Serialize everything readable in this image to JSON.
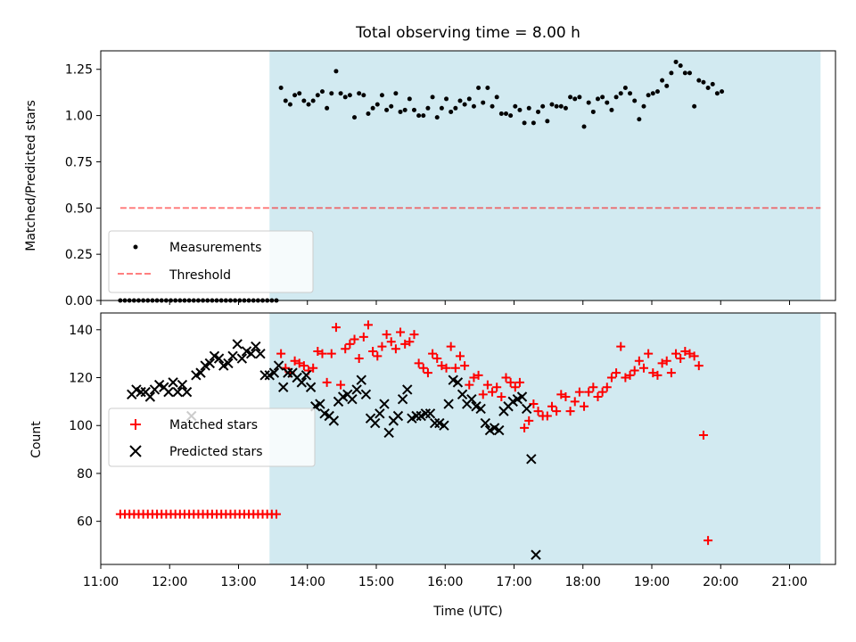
{
  "title": "Total observing time = 8.00 h",
  "xlabel": "Time (UTC)",
  "x_ticks": [
    "11:00",
    "12:00",
    "13:00",
    "14:00",
    "15:00",
    "16:00",
    "17:00",
    "18:00",
    "19:00",
    "20:00",
    "21:00"
  ],
  "colors": {
    "shade": "#add8e6",
    "threshold": "#ff0000",
    "matched": "#ff0000",
    "predicted": "#000000"
  },
  "chart_data": [
    {
      "type": "scatter",
      "ylabel": "Matched/Predicted stars",
      "xlim": [
        "11:00",
        "21:40"
      ],
      "ylim": [
        0,
        1.35
      ],
      "y_ticks": [
        "0.00",
        "0.25",
        "0.50",
        "0.75",
        "1.00",
        "1.25"
      ],
      "grid": false,
      "legend_position": "lower-left",
      "shaded_span": [
        "13:27",
        "21:27"
      ],
      "series": [
        {
          "name": "Measurements",
          "start": "11:17",
          "step_minutes": 4,
          "values": [
            0,
            0,
            0,
            0,
            0,
            0,
            0,
            0,
            0,
            0,
            0,
            0,
            0,
            0,
            0,
            0,
            0,
            0,
            0,
            0,
            0,
            0,
            0,
            0,
            0,
            0,
            0,
            0,
            0,
            0,
            0,
            0,
            0,
            0,
            0,
            1.15,
            1.08,
            1.06,
            1.11,
            1.12,
            1.08,
            1.06,
            1.08,
            1.11,
            1.13,
            1.04,
            1.12,
            1.24,
            1.12,
            1.1,
            1.11,
            0.99,
            1.12,
            1.11,
            1.01,
            1.04,
            1.06,
            1.11,
            1.03,
            1.05,
            1.12,
            1.02,
            1.03,
            1.09,
            1.03,
            1.0,
            1.0,
            1.04,
            1.1,
            0.99,
            1.04,
            1.09,
            1.02,
            1.04,
            1.08,
            1.06,
            1.09,
            1.05,
            1.15,
            1.07,
            1.15,
            1.05,
            1.1,
            1.01,
            1.01,
            1.0,
            1.05,
            1.03,
            0.96,
            1.04,
            0.96,
            1.02,
            1.05,
            0.97,
            1.06,
            1.05,
            1.05,
            1.04,
            1.1,
            1.09,
            1.1,
            0.94,
            1.07,
            1.02,
            1.09,
            1.1,
            1.07,
            1.03,
            1.1,
            1.12,
            1.15,
            1.12,
            1.08,
            0.98,
            1.05,
            1.11,
            1.12,
            1.13,
            1.19,
            1.16,
            1.23,
            1.29,
            1.27,
            1.23,
            1.23,
            1.05,
            1.19,
            1.18,
            1.15,
            1.17,
            1.12,
            1.13
          ]
        },
        {
          "name": "Threshold",
          "type": "line",
          "x": [
            "11:17",
            "21:27"
          ],
          "values": [
            0.5,
            0.5
          ]
        }
      ]
    },
    {
      "type": "scatter",
      "ylabel": "Count",
      "xlim": [
        "11:00",
        "21:40"
      ],
      "ylim": [
        42,
        147
      ],
      "y_ticks": [
        "60",
        "80",
        "100",
        "120",
        "140"
      ],
      "grid": false,
      "legend_position": "center-left",
      "shaded_span": [
        "13:27",
        "21:27"
      ],
      "series": [
        {
          "name": "Matched stars",
          "start": "11:17",
          "step_minutes": 4,
          "values": [
            63,
            63,
            63,
            63,
            63,
            63,
            63,
            63,
            63,
            63,
            63,
            63,
            63,
            63,
            63,
            63,
            63,
            63,
            63,
            63,
            63,
            63,
            63,
            63,
            63,
            63,
            63,
            63,
            63,
            63,
            63,
            63,
            63,
            63,
            63,
            130,
            124,
            122,
            127,
            126,
            125,
            123,
            124,
            131,
            130,
            118,
            130,
            141,
            117,
            132,
            134,
            136,
            128,
            137,
            142,
            131,
            129,
            133,
            138,
            135,
            132,
            139,
            134,
            135,
            138,
            126,
            124,
            122,
            130,
            128,
            125,
            124,
            133,
            124,
            129,
            125,
            117,
            120,
            121,
            113,
            117,
            114,
            116,
            112,
            120,
            118,
            116,
            118,
            99,
            102,
            109,
            106,
            104,
            104,
            108,
            106,
            113,
            112,
            106,
            110,
            114,
            108,
            114,
            116,
            112,
            114,
            116,
            120,
            122,
            133,
            120,
            121,
            123,
            127,
            124,
            130,
            122,
            121,
            126,
            127,
            122,
            130,
            128,
            131,
            130,
            129,
            125,
            96,
            52
          ]
        },
        {
          "name": "Predicted stars",
          "start": "11:27",
          "step_minutes": 4,
          "values": [
            113,
            115,
            114,
            114,
            112,
            115,
            117,
            116,
            114,
            118,
            114,
            117,
            114,
            104,
            121,
            122,
            125,
            126,
            129,
            128,
            125,
            126,
            129,
            134,
            128,
            131,
            130,
            133,
            130,
            121,
            121,
            122,
            125,
            116,
            122,
            122,
            120,
            118,
            121,
            116,
            108,
            109,
            105,
            104,
            102,
            110,
            112,
            113,
            111,
            115,
            119,
            113,
            103,
            101,
            105,
            109,
            97,
            102,
            104,
            111,
            115,
            103,
            104,
            104,
            105,
            105,
            101,
            101,
            100,
            109,
            119,
            118,
            113,
            109,
            111,
            108,
            107,
            101,
            98,
            99,
            98,
            106,
            108,
            110,
            111,
            112,
            107,
            86,
            46
          ]
        }
      ]
    }
  ]
}
